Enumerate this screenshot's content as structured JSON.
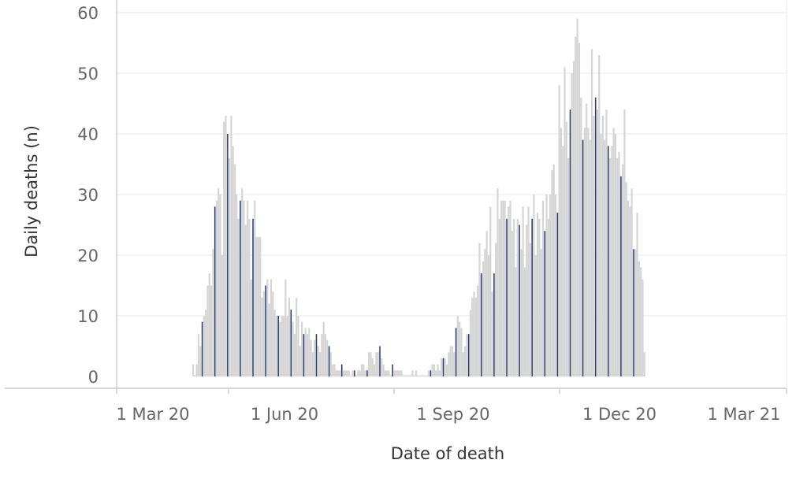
{
  "chart_data": {
    "type": "bar",
    "title": "",
    "xlabel": "Date of death",
    "ylabel": "Daily deaths (n)",
    "ylim": [
      0,
      60
    ],
    "y_ticks": [
      0,
      10,
      20,
      30,
      40,
      50,
      60
    ],
    "x_tick_labels": [
      "1 Mar 20",
      "1 Jun 20",
      "1 Sep 20",
      "1 Dec 20",
      "1 Mar 21"
    ],
    "x_tick_day_index": [
      0,
      92,
      184,
      275,
      365
    ],
    "start_day_index": 17,
    "highlight_every": 7,
    "highlight_offset": 5,
    "series": [
      {
        "name": "Daily deaths",
        "values": [
          2,
          0,
          2,
          7,
          5,
          9,
          10,
          11,
          15,
          17,
          15,
          21,
          28,
          29,
          31,
          30,
          20,
          42,
          43,
          40,
          36,
          43,
          38,
          35,
          30,
          26,
          29,
          31,
          29,
          25,
          29,
          26,
          16,
          26,
          29,
          23,
          23,
          23,
          13,
          14,
          15,
          16,
          12,
          16,
          14,
          11,
          10,
          10,
          9,
          10,
          10,
          16,
          10,
          13,
          11,
          9,
          7,
          13,
          10,
          5,
          9,
          7,
          8,
          7,
          8,
          6,
          4,
          6,
          7,
          5,
          4,
          7,
          9,
          7,
          6,
          5,
          4,
          2,
          2,
          1,
          1,
          1,
          2,
          1,
          1,
          1,
          1,
          0,
          1,
          1,
          0,
          1,
          1,
          2,
          2,
          1,
          1,
          4,
          4,
          3,
          2,
          4,
          4,
          5,
          3,
          2,
          1,
          1,
          1,
          0,
          2,
          1,
          1,
          1,
          1,
          1,
          0,
          0,
          0,
          0,
          0,
          1,
          0,
          1,
          0,
          0,
          0,
          0,
          0,
          0,
          1,
          1,
          2,
          2,
          1,
          2,
          1,
          3,
          3,
          3,
          2,
          4,
          5,
          5,
          4,
          8,
          10,
          9,
          8,
          4,
          5,
          7,
          7,
          11,
          13,
          14,
          13,
          15,
          22,
          17,
          19,
          21,
          24,
          20,
          28,
          14,
          17,
          22,
          31,
          26,
          29,
          29,
          29,
          26,
          28,
          29,
          24,
          26,
          18,
          26,
          25,
          21,
          28,
          18,
          25,
          28,
          22,
          26,
          30,
          20,
          27,
          26,
          21,
          29,
          24,
          30,
          26,
          30,
          34,
          35,
          30,
          27,
          48,
          41,
          38,
          51,
          42,
          36,
          44,
          50,
          52,
          56,
          59,
          55,
          46,
          39,
          41,
          45,
          41,
          39,
          54,
          43,
          46,
          44,
          53,
          40,
          43,
          39,
          44,
          38,
          36,
          38,
          41,
          40,
          36,
          37,
          33,
          35,
          44,
          32,
          29,
          28,
          31,
          21,
          21,
          27,
          19,
          18,
          16,
          4
        ]
      }
    ]
  }
}
